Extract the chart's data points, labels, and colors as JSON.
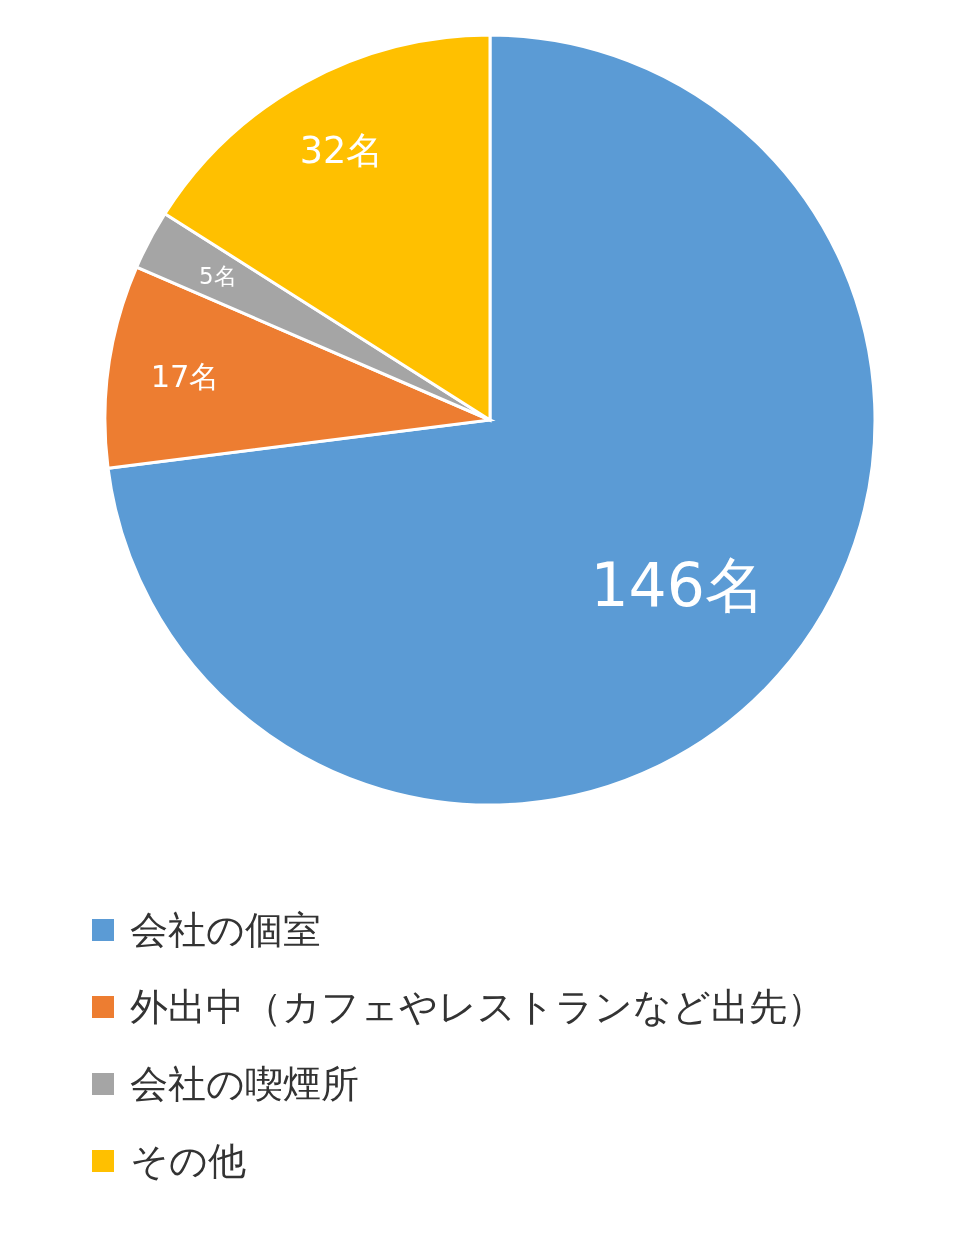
{
  "chart_data": {
    "type": "pie",
    "categories": [
      "会社の個室",
      "外出中（カフェやレストランなど出先）",
      "会社の喫煙所",
      "その他"
    ],
    "values": [
      146,
      17,
      5,
      32
    ],
    "colors": [
      "#5b9bd5",
      "#ed7d31",
      "#a5a5a5",
      "#ffc000"
    ],
    "value_labels": [
      "146名",
      "17名",
      "5名",
      "32名"
    ],
    "legend": "bottom"
  }
}
